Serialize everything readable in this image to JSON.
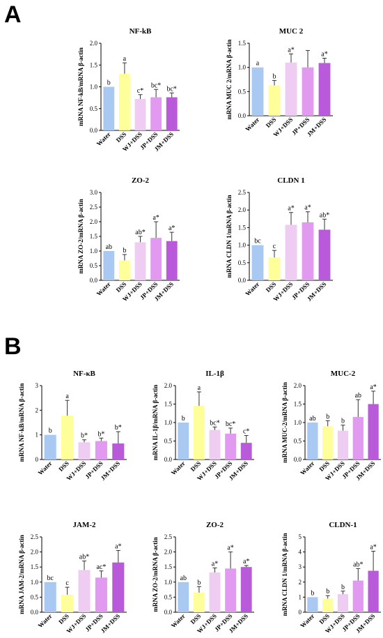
{
  "figure": {
    "panels": [
      {
        "label": "A"
      },
      {
        "label": "B"
      }
    ]
  },
  "colors": {
    "Water": "#a9c8f2",
    "DSS": "#ffff99",
    "WJ+DSS": "#efcdf3",
    "JP+DSS": "#e19af0",
    "JM+DSS": "#b85ad9"
  },
  "chart_data": [
    {
      "type": "bar",
      "panel": "A",
      "title": "NF-kB",
      "ylabel": "mRNA NF-kB/mRNA β-actin",
      "categories": [
        "Water",
        "DSS",
        "WJ+DSS",
        "JP+DSS",
        "JM+DSS"
      ],
      "values": [
        1.0,
        1.3,
        0.72,
        0.76,
        0.76
      ],
      "errors": [
        0.0,
        0.25,
        0.1,
        0.18,
        0.1
      ],
      "labels": [
        "b",
        "a",
        "c*",
        "bc*",
        "bc*"
      ],
      "ylim": [
        0,
        2.0
      ],
      "yticks": [
        "0.0",
        "0.5",
        "1.0",
        "1.5",
        "2.0"
      ]
    },
    {
      "type": "bar",
      "panel": "A",
      "title": "MUC 2",
      "ylabel": "mRNA MUC 2/mRNA β-actin",
      "categories": [
        "Water",
        "DSS",
        "WJ+DSS",
        "JP+DSS",
        "JM+DSS"
      ],
      "values": [
        1.0,
        0.63,
        1.1,
        1.0,
        1.09
      ],
      "errors": [
        0.0,
        0.1,
        0.18,
        0.35,
        0.1
      ],
      "labels": [
        "a",
        "b",
        "a*",
        "",
        "a*"
      ],
      "ylim": [
        0,
        1.5
      ],
      "yticks": [
        "0.0",
        "0.5",
        "1.0",
        "1.5"
      ]
    },
    {
      "type": "bar",
      "panel": "A",
      "title": "ZO-2",
      "ylabel": "mRNA ZO-2/mRNA β-actin",
      "categories": [
        "Water",
        "DSS",
        "WJ+DSS",
        "JP+DSS",
        "JM+DSS"
      ],
      "values": [
        1.0,
        0.68,
        1.3,
        1.45,
        1.34
      ],
      "errors": [
        0.0,
        0.2,
        0.2,
        0.55,
        0.3
      ],
      "labels": [
        "ab",
        "b",
        "ab*",
        "a*",
        "a*"
      ],
      "ylim": [
        0,
        3.0
      ],
      "yticks": [
        "0.0",
        "0.5",
        "1.0",
        "1.5",
        "2.0",
        "2.5",
        "3.0"
      ]
    },
    {
      "type": "bar",
      "panel": "A",
      "title": "CLDN 1",
      "ylabel": "mRNA CLDN 1/mRNA β-actin",
      "categories": [
        "Water",
        "DSS",
        "WJ+DSS",
        "JP+DSS",
        "JM+DSS"
      ],
      "values": [
        1.0,
        0.65,
        1.58,
        1.65,
        1.44
      ],
      "errors": [
        0.0,
        0.2,
        0.35,
        0.3,
        0.3
      ],
      "labels": [
        "bc",
        "c",
        "a*",
        "a*",
        "ab*"
      ],
      "ylim": [
        0,
        2.5
      ],
      "yticks": [
        "0.0",
        "0.5",
        "1.0",
        "1.5",
        "2.0",
        "2.5"
      ]
    },
    {
      "type": "bar",
      "panel": "B",
      "title": "NF-κB",
      "ylabel": "mRNA NF-kB/mRNA β-actin",
      "categories": [
        "Water",
        "DSS",
        "WJ+DSS",
        "JP+DSS",
        "JM+DSS"
      ],
      "values": [
        1.0,
        1.78,
        0.7,
        0.75,
        0.65
      ],
      "errors": [
        0.0,
        0.62,
        0.1,
        0.12,
        0.48
      ],
      "labels": [
        "b",
        "a",
        "b*",
        "b*",
        "b*"
      ],
      "ylim": [
        0,
        3.0
      ],
      "yticks": [
        "0",
        "1",
        "2",
        "3"
      ]
    },
    {
      "type": "bar",
      "panel": "B",
      "title": "IL-1β",
      "ylabel": "mRNA IL-1β/mRNA β-actin",
      "categories": [
        "Water",
        "DSS",
        "WJ+DSS",
        "JP+DSS",
        "JM+DSS"
      ],
      "values": [
        1.0,
        1.45,
        0.8,
        0.7,
        0.45
      ],
      "errors": [
        0.0,
        0.38,
        0.08,
        0.15,
        0.2
      ],
      "labels": [
        "b",
        "a",
        "bc*",
        "bc*",
        "c*"
      ],
      "ylim": [
        0,
        2.0
      ],
      "yticks": [
        "0.0",
        "0.5",
        "1.0",
        "1.5",
        "2.0"
      ]
    },
    {
      "type": "bar",
      "panel": "B",
      "title": "MUC-2",
      "ylabel": "mRNA MUC-2/mRNA β-actin",
      "categories": [
        "Water",
        "DSS",
        "WJ+DSS",
        "JP+DSS",
        "JM+DSS"
      ],
      "values": [
        1.0,
        0.9,
        0.78,
        1.15,
        1.5
      ],
      "errors": [
        0.0,
        0.15,
        0.15,
        0.47,
        0.35
      ],
      "labels": [
        "ab",
        "b",
        "b",
        "ab",
        "a*"
      ],
      "ylim": [
        0,
        2.0
      ],
      "yticks": [
        "0.0",
        "0.5",
        "1.0",
        "1.5",
        "2.0"
      ]
    },
    {
      "type": "bar",
      "panel": "B",
      "title": "JAM-2",
      "ylabel": "mRNA JAM-2/mRNA β-actin",
      "categories": [
        "Water",
        "DSS",
        "WJ+DSS",
        "JP+DSS",
        "JM+DSS"
      ],
      "values": [
        1.0,
        0.58,
        1.4,
        1.15,
        1.65
      ],
      "errors": [
        0.0,
        0.25,
        0.3,
        0.22,
        0.4
      ],
      "labels": [
        "bc",
        "c",
        "ab*",
        "ac*",
        "a*"
      ],
      "ylim": [
        0,
        2.5
      ],
      "yticks": [
        "0.0",
        "0.5",
        "1.0",
        "1.5",
        "2.0",
        "2.5"
      ]
    },
    {
      "type": "bar",
      "panel": "B",
      "title": "ZO-2",
      "ylabel": "mRNA ZO-2/mRNA β-actin",
      "categories": [
        "Water",
        "DSS",
        "WJ+DSS",
        "JP+DSS",
        "JM+DSS"
      ],
      "values": [
        1.0,
        0.65,
        1.32,
        1.45,
        1.5
      ],
      "errors": [
        0.0,
        0.2,
        0.15,
        0.55,
        0.05
      ],
      "labels": [
        "ab",
        "b",
        "a*",
        "a*",
        "a*"
      ],
      "ylim": [
        0,
        2.5
      ],
      "yticks": [
        "0.0",
        "0.5",
        "1.0",
        "1.5",
        "2.0",
        "2.5"
      ]
    },
    {
      "type": "bar",
      "panel": "B",
      "title": "CLDN-1",
      "ylabel": "mRNA CLDN 1/mRNA β-actin",
      "categories": [
        "Water",
        "DSS",
        "WJ+DSS",
        "JP+DSS",
        "JM+DSS"
      ],
      "values": [
        1.0,
        0.9,
        1.2,
        2.1,
        2.75
      ],
      "errors": [
        0.0,
        0.2,
        0.2,
        0.8,
        1.3
      ],
      "labels": [
        "b",
        "b",
        "b",
        "ab*",
        "a*"
      ],
      "ylim": [
        0,
        5.0
      ],
      "yticks": [
        "0",
        "1",
        "2",
        "3",
        "4",
        "5"
      ]
    }
  ]
}
